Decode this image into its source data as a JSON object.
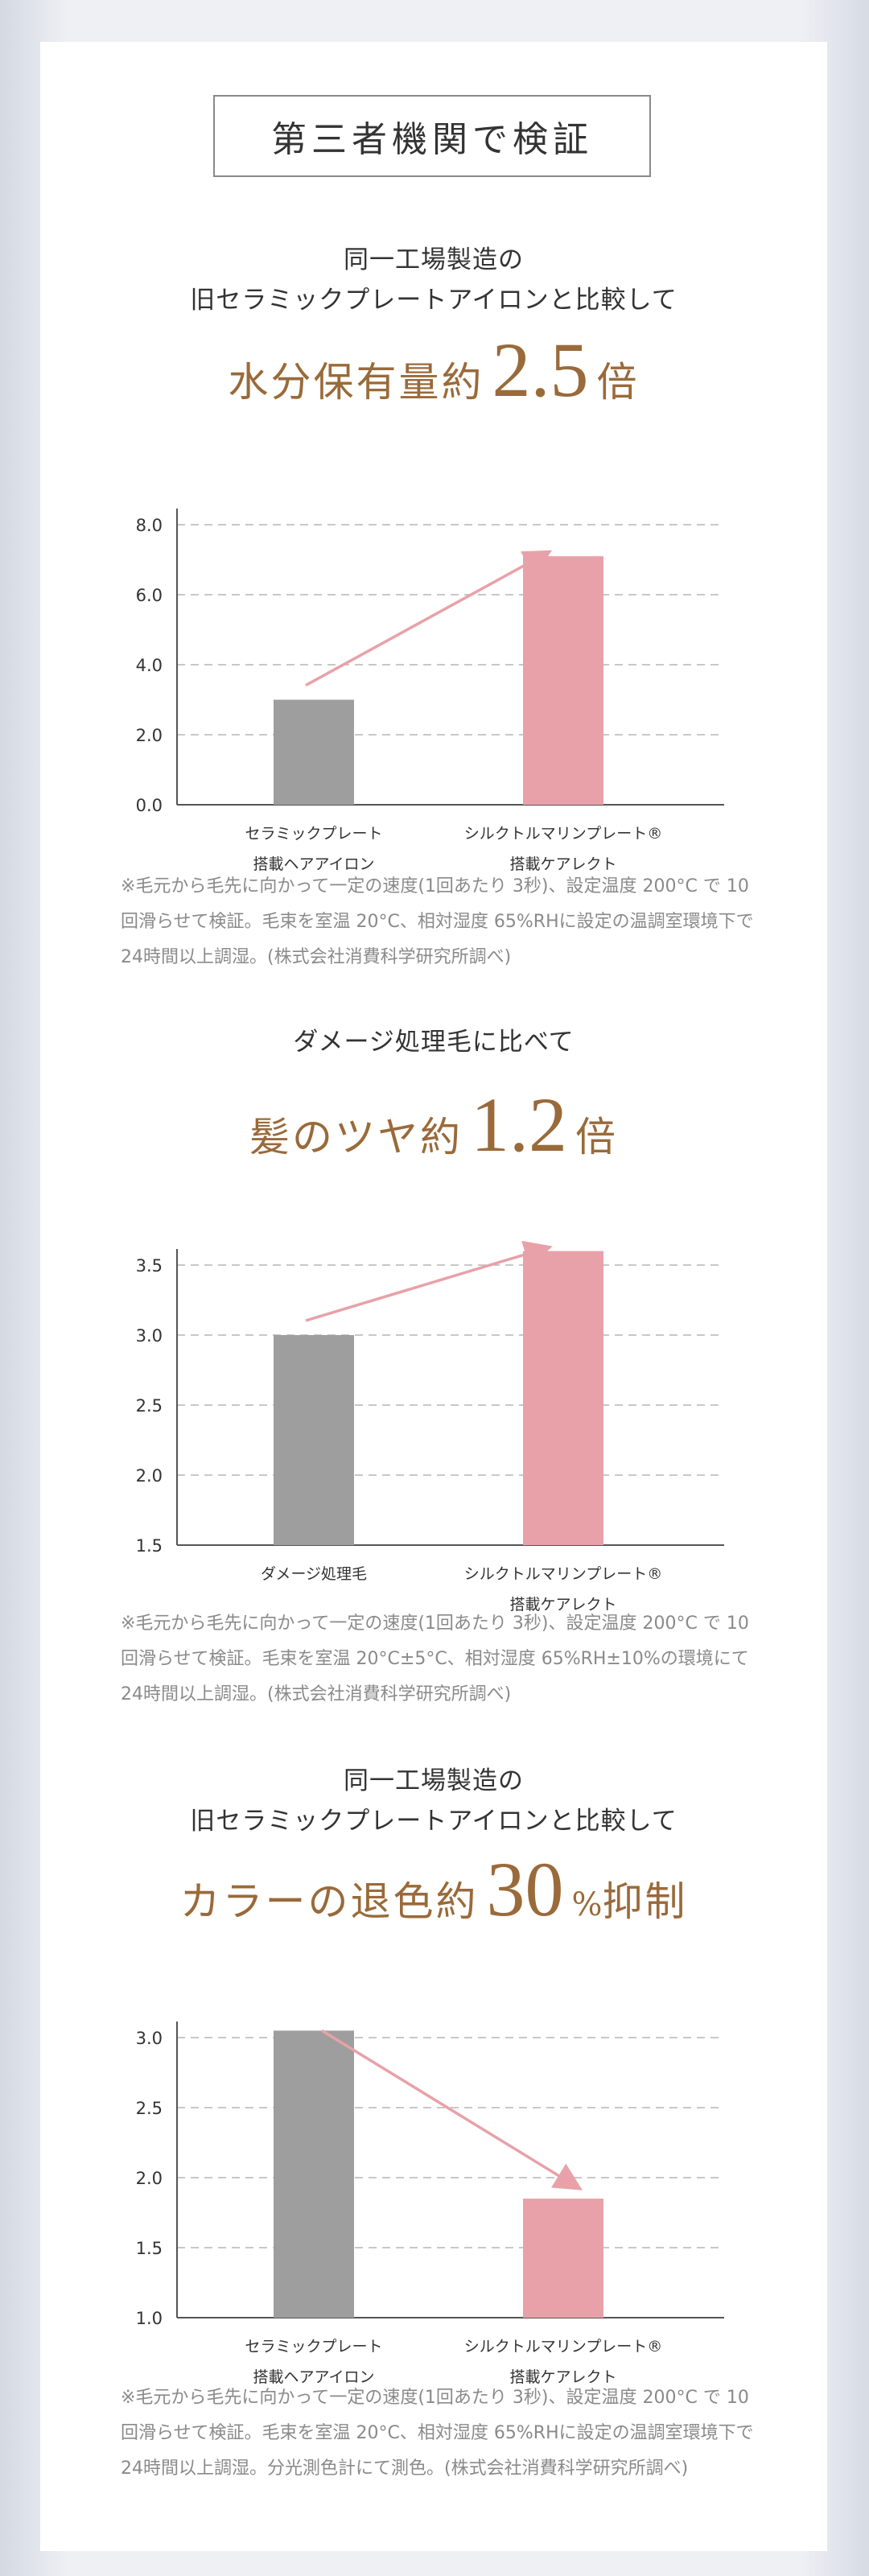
{
  "section_title": "第三者機関で検証",
  "sections": [
    {
      "subtitle_lines": [
        "同一工場製造の",
        "旧セラミックプレートアイロンと比較して"
      ],
      "headline": {
        "prefix": "水分保有量約",
        "number": "2.5",
        "unit": "",
        "suffix": "倍"
      },
      "note": "※毛元から毛先に向かって一定の速度(1回あたり 3秒)、設定温度 200°C で 10回滑らせて検証。毛束を室温 20°C、相対湿度 65%RHに設定の温調室環境下で 24時間以上調湿。(株式会社消費科学研究所調べ)"
    },
    {
      "subtitle_lines": [
        "ダメージ処理毛に比べて"
      ],
      "headline": {
        "prefix": "髪のツヤ約",
        "number": "1.2",
        "unit": "",
        "suffix": "倍"
      },
      "note": "※毛元から毛先に向かって一定の速度(1回あたり 3秒)、設定温度 200°C で 10回滑らせて検証。毛束を室温 20°C±5°C、相対湿度 65%RH±10%の環境にて 24時間以上調湿。(株式会社消費科学研究所調べ)"
    },
    {
      "subtitle_lines": [
        "同一工場製造の",
        "旧セラミックプレートアイロンと比較して"
      ],
      "headline": {
        "prefix": "カラーの退色約",
        "number": "30",
        "unit": "%",
        "suffix": "抑制"
      },
      "note": "※毛元から毛先に向かって一定の速度(1回あたり 3秒)、設定温度 200°C で 10回滑らせて検証。毛束を室温 20°C、相対湿度 65%RHに設定の温調室環境下で 24時間以上調湿。分光測色計にて測色。(株式会社消費科学研究所調べ)"
    }
  ],
  "colors": {
    "gray_bar": "#9e9e9e",
    "pink_bar": "#e8a1a8",
    "arrow": "#e8a1a8",
    "accent_text": "#9a6a3a"
  },
  "chart_data": [
    {
      "type": "bar",
      "categories": [
        [
          "セラミックプレート",
          "搭載ヘアアイロン"
        ],
        [
          "シルクトルマリンプレート®",
          "搭載ケアレクト"
        ]
      ],
      "values": [
        3.0,
        7.1
      ],
      "ylim": [
        0,
        8
      ],
      "yticks": [
        "0.0",
        "2.0",
        "4.0",
        "6.0",
        "8.0"
      ],
      "grid": true,
      "arrow": "up"
    },
    {
      "type": "bar",
      "categories": [
        [
          "ダメージ処理毛"
        ],
        [
          "シルクトルマリンプレート®",
          "搭載ケアレクト"
        ]
      ],
      "values": [
        3.0,
        3.6
      ],
      "ylim": [
        1.5,
        3.5
      ],
      "yticks": [
        "1.5",
        "2.0",
        "2.5",
        "3.0",
        "3.5"
      ],
      "grid": true,
      "arrow": "up"
    },
    {
      "type": "bar",
      "categories": [
        [
          "セラミックプレート",
          "搭載ヘアアイロン"
        ],
        [
          "シルクトルマリンプレート®",
          "搭載ケアレクト"
        ]
      ],
      "values": [
        3.05,
        1.85
      ],
      "ylim": [
        1.0,
        3.0
      ],
      "yticks": [
        "1.0",
        "1.5",
        "2.0",
        "2.5",
        "3.0"
      ],
      "grid": true,
      "arrow": "down"
    }
  ]
}
